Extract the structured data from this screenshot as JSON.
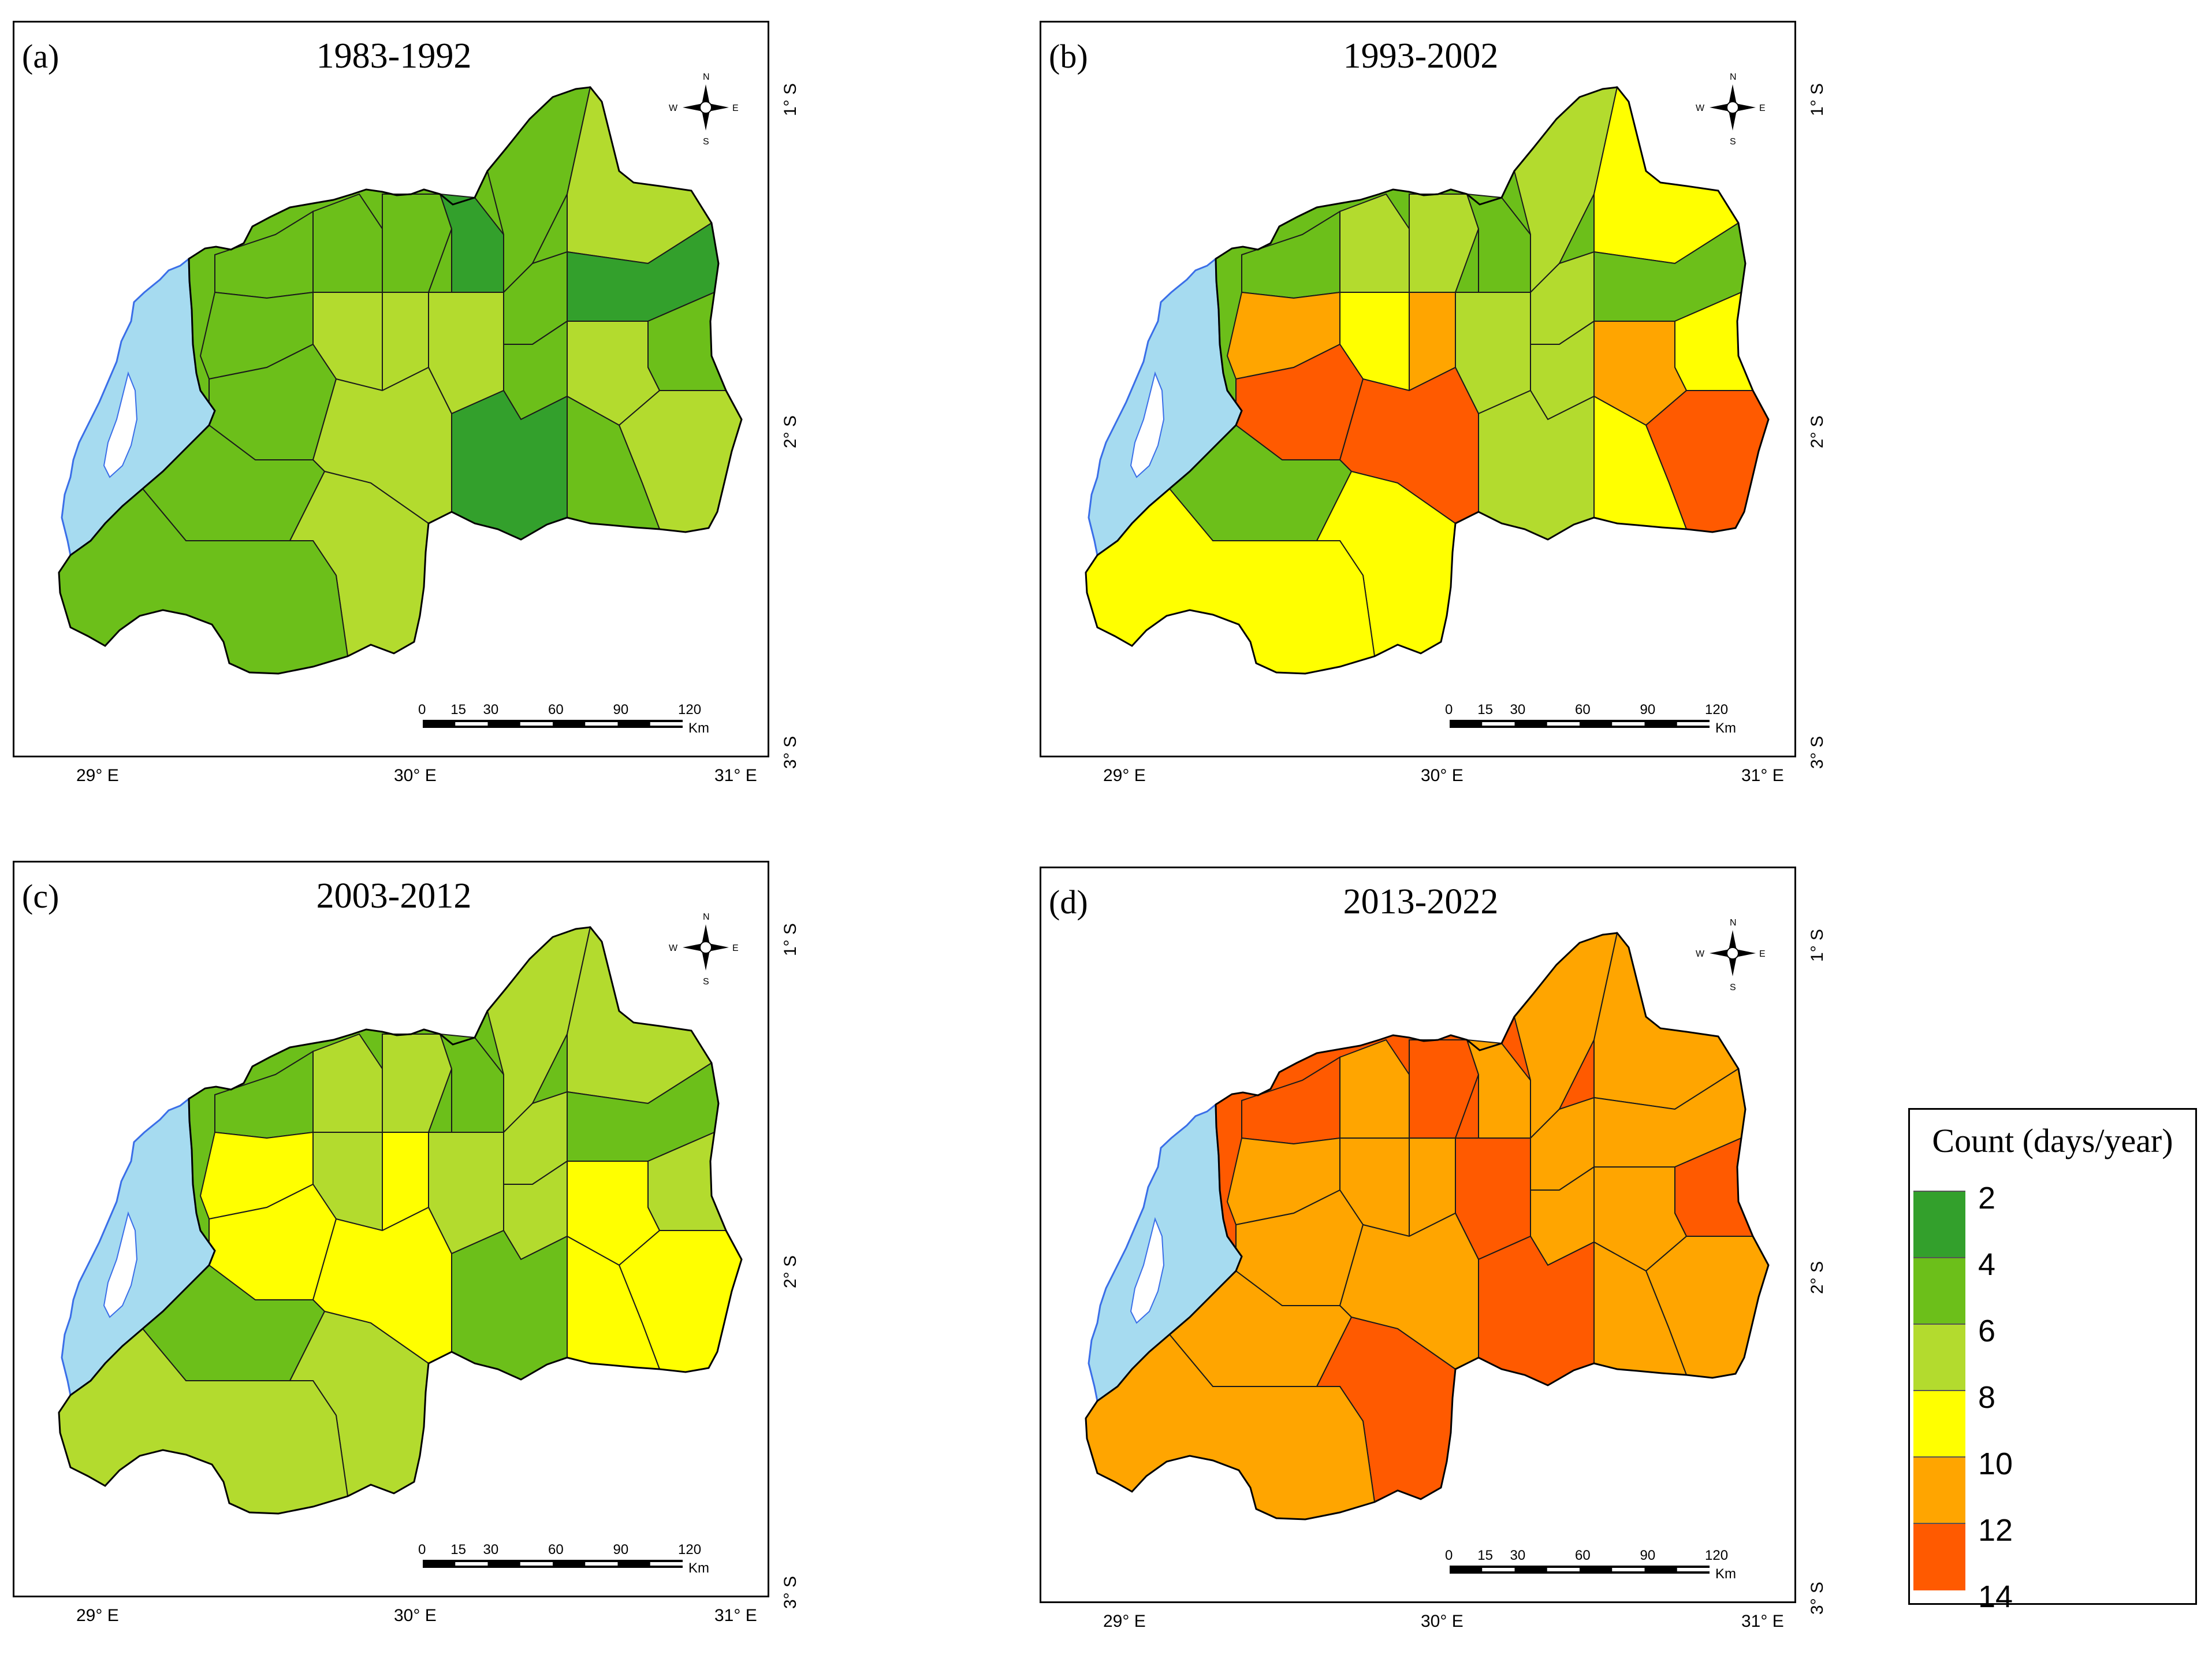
{
  "panels": [
    {
      "letter": "(a)",
      "title": "1983-1992",
      "fill_index": [
        1,
        1,
        1,
        0,
        1,
        2,
        0,
        1,
        1,
        2,
        2,
        1,
        1,
        2,
        2,
        2,
        1,
        1,
        2,
        0,
        1,
        2,
        1
      ]
    },
    {
      "letter": "(b)",
      "title": "1993-2002",
      "fill_index": [
        1,
        2,
        2,
        1,
        2,
        3,
        1,
        2,
        3,
        4,
        5,
        2,
        3,
        2,
        4,
        3,
        4,
        5,
        5,
        2,
        1,
        3,
        3
      ]
    },
    {
      "letter": "(c)",
      "title": "2003-2012",
      "fill_index": [
        1,
        2,
        2,
        1,
        2,
        2,
        1,
        2,
        2,
        3,
        3,
        2,
        3,
        2,
        3,
        2,
        3,
        3,
        3,
        1,
        1,
        2,
        2
      ]
    },
    {
      "letter": "(d)",
      "title": "2013-2022",
      "fill_index": [
        5,
        4,
        5,
        4,
        4,
        4,
        4,
        4,
        5,
        4,
        4,
        4,
        4,
        5,
        4,
        4,
        4,
        4,
        4,
        5,
        4,
        5,
        4
      ]
    }
  ],
  "axes": {
    "lat_labels": [
      "1° S",
      "2° S",
      "3° S"
    ],
    "lon_labels": [
      "29° E",
      "30° E",
      "31° E"
    ]
  },
  "scale_bar": {
    "ticks": [
      "0",
      "15",
      "30",
      "60",
      "90",
      "120"
    ],
    "unit": "Km"
  },
  "compass": {
    "n": "N",
    "s": "S",
    "e": "E",
    "w": "W"
  },
  "legend": {
    "title": "Count (days/year)",
    "classes": [
      {
        "label": "2",
        "color": "#33a02c"
      },
      {
        "label": "4",
        "color": "#6cbf1a"
      },
      {
        "label": "6",
        "color": "#b3db2e"
      },
      {
        "label": "8",
        "color": "#ffff00"
      },
      {
        "label": "10",
        "color": "#ffa500"
      },
      {
        "label": "12",
        "color": "#ff5a00"
      },
      {
        "label": "14",
        "color": "#ff5a00"
      }
    ]
  },
  "lake_color": "#a6dbf0"
}
